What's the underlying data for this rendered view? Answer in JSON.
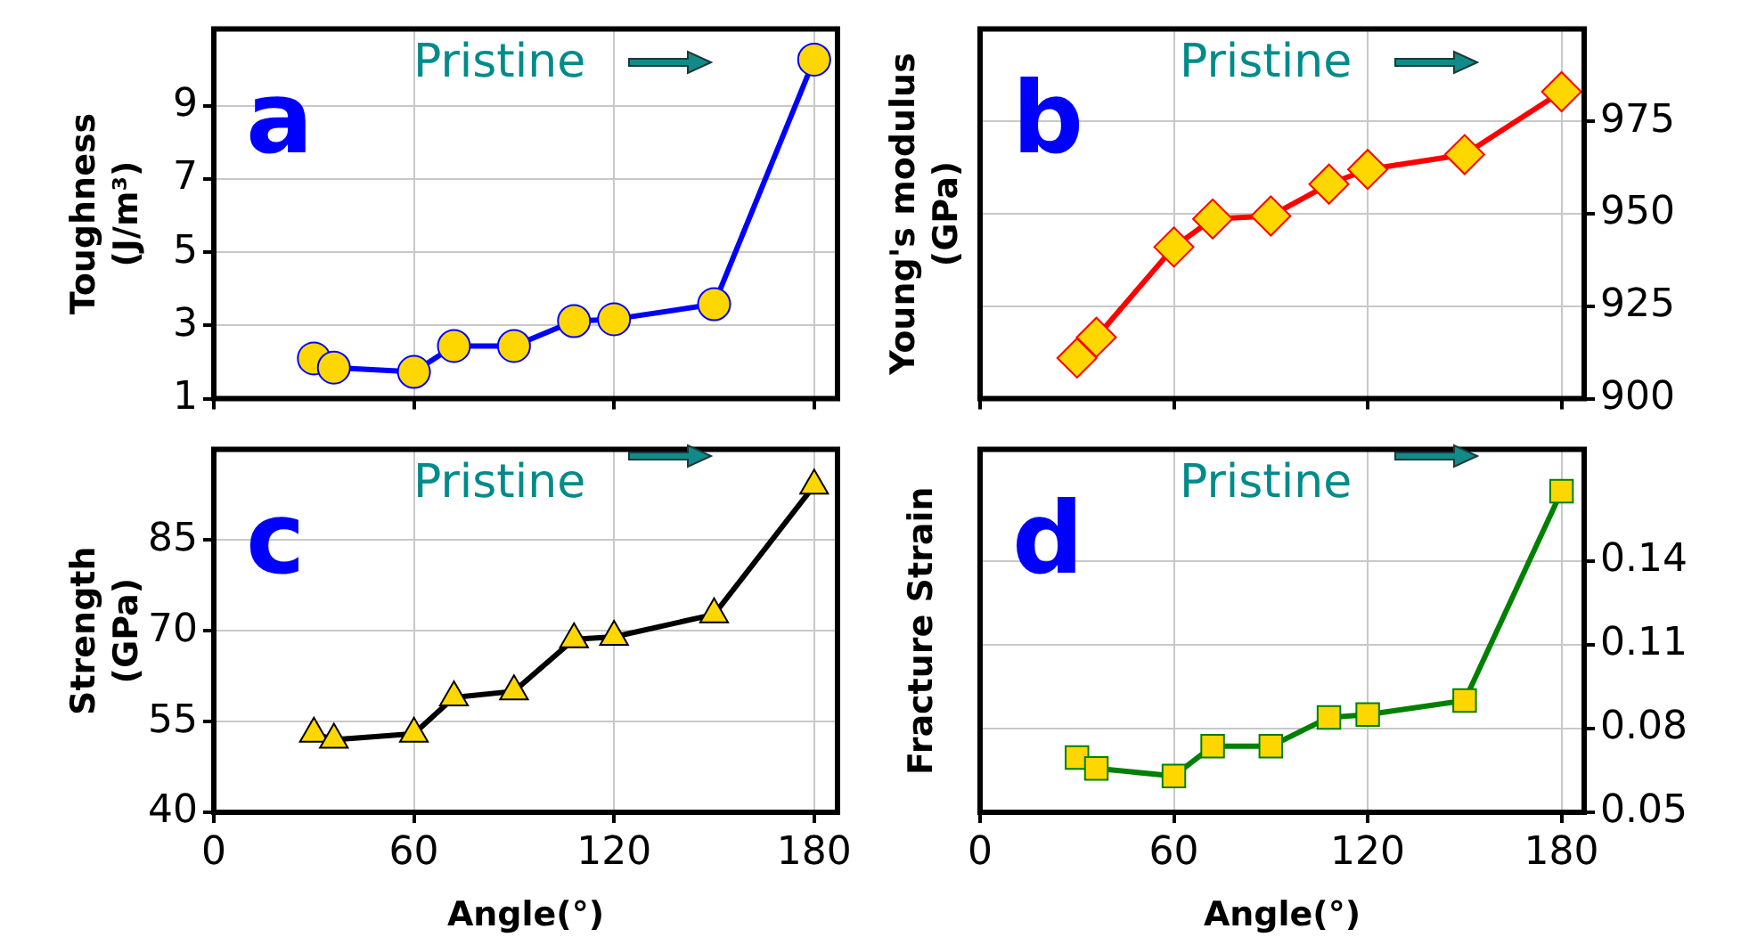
{
  "chart_data": [
    {
      "type": "line",
      "x": [
        30,
        36,
        60,
        72,
        90,
        108,
        120,
        150,
        180
      ],
      "series": [
        {
          "color": "#0000ff",
          "values": [
            2.1,
            1.85,
            1.73,
            2.44,
            2.44,
            3.12,
            3.17,
            3.58,
            10.26
          ]
        }
      ],
      "xlim": [
        0,
        187
      ],
      "xticks": [
        0,
        60,
        120,
        180
      ],
      "ylim": [
        1,
        11.1
      ],
      "yticks": [
        1,
        3,
        5,
        7,
        9
      ],
      "ylabel": "Toughness (J/m³)",
      "grid": true,
      "marker": "circle",
      "tick_labels": "y",
      "annotations": [
        "a",
        "Pristine"
      ]
    },
    {
      "type": "line",
      "x": [
        30,
        36,
        60,
        72,
        90,
        108,
        120,
        150,
        180
      ],
      "series": [
        {
          "color": "#ff0000",
          "axis": "y2",
          "values": [
            911,
            916.6,
            941,
            948.6,
            949.4,
            958,
            962,
            966,
            983
          ]
        }
      ],
      "xlim": [
        0,
        187
      ],
      "xticks": [
        0,
        60,
        120,
        180
      ],
      "y2lim": [
        900,
        1000
      ],
      "y2ticks": [
        900,
        925,
        950,
        975
      ],
      "y2label": "Young's modulus (GPa)",
      "grid": true,
      "marker": "diamond",
      "tick_labels": "y",
      "annotations": [
        "b",
        "Pristine"
      ]
    },
    {
      "type": "line",
      "x": [
        30,
        36,
        60,
        72,
        90,
        108,
        120,
        150,
        180
      ],
      "series": [
        {
          "color": "#000000",
          "values": [
            53,
            52,
            53,
            59,
            60,
            68.6,
            69,
            72.7,
            94
          ]
        }
      ],
      "xlim": [
        0,
        187
      ],
      "xticks": [
        0,
        60,
        120,
        180
      ],
      "ylim": [
        40,
        100
      ],
      "yticks": [
        40,
        55,
        70,
        85
      ],
      "xlabel": "Angle(°)",
      "ylabel": "Strength (GPa)",
      "grid": true,
      "marker": "triangle",
      "annotations": [
        "c",
        "Pristine"
      ]
    },
    {
      "type": "line",
      "x": [
        30,
        36,
        60,
        72,
        90,
        108,
        120,
        150,
        180
      ],
      "series": [
        {
          "color": "#008000",
          "axis": "y2",
          "values": [
            0.0696,
            0.0657,
            0.063,
            0.0737,
            0.0737,
            0.084,
            0.085,
            0.09,
            0.165
          ]
        }
      ],
      "xlim": [
        0,
        187
      ],
      "xticks": [
        0,
        60,
        120,
        180
      ],
      "y2lim": [
        0.05,
        0.18
      ],
      "y2ticks": [
        0.05,
        0.08,
        0.11,
        0.14
      ],
      "xlabel": "Angle(°)",
      "y2label": "Fracture Strain",
      "grid": true,
      "marker": "square",
      "annotations": [
        "d",
        "Pristine"
      ]
    }
  ]
}
